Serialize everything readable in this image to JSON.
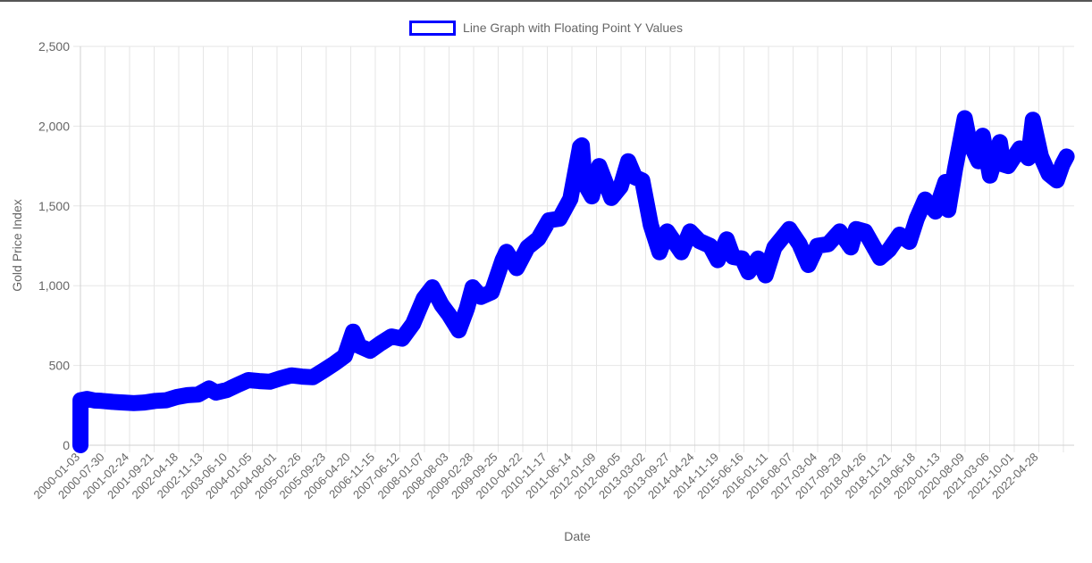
{
  "chart_data": {
    "type": "line",
    "title": "",
    "xlabel": "Date",
    "ylabel": "Gold Price Index",
    "ylim": [
      0,
      2500
    ],
    "yticks": [
      "0",
      "500",
      "1,000",
      "1,500",
      "2,000",
      "2,500"
    ],
    "grid": true,
    "legend_position": "top-center",
    "series": [
      {
        "name": "Line Graph with Floating Point Y Values",
        "color": "#0000ff",
        "x": [
          "2000-01-03",
          "2000-01-04",
          "2000-03-01",
          "2000-05-01",
          "2000-07-01",
          "2000-10-01",
          "2001-01-01",
          "2001-04-01",
          "2001-07-01",
          "2001-10-01",
          "2002-01-01",
          "2002-04-01",
          "2002-07-01",
          "2002-10-01",
          "2003-01-01",
          "2003-03-01",
          "2003-06-01",
          "2003-09-01",
          "2003-12-01",
          "2004-03-01",
          "2004-06-01",
          "2004-09-01",
          "2004-12-01",
          "2005-03-01",
          "2005-06-01",
          "2005-09-01",
          "2005-12-01",
          "2006-03-01",
          "2006-05-10",
          "2006-07-01",
          "2006-10-01",
          "2007-01-01",
          "2007-04-01",
          "2007-07-01",
          "2007-10-01",
          "2008-01-01",
          "2008-03-15",
          "2008-06-01",
          "2008-08-01",
          "2008-10-25",
          "2009-01-01",
          "2009-02-20",
          "2009-05-01",
          "2009-08-01",
          "2009-11-01",
          "2009-12-05",
          "2010-03-01",
          "2010-06-01",
          "2010-09-01",
          "2010-12-01",
          "2011-03-01",
          "2011-06-01",
          "2011-08-22",
          "2011-09-06",
          "2011-10-01",
          "2011-12-01",
          "2012-02-01",
          "2012-05-15",
          "2012-08-01",
          "2012-10-05",
          "2012-12-01",
          "2013-02-01",
          "2013-04-15",
          "2013-06-28",
          "2013-09-01",
          "2013-12-31",
          "2014-03-15",
          "2014-06-01",
          "2014-09-01",
          "2014-11-05",
          "2015-01-20",
          "2015-03-15",
          "2015-06-01",
          "2015-07-24",
          "2015-10-15",
          "2015-12-17",
          "2016-03-01",
          "2016-07-06",
          "2016-10-01",
          "2016-12-15",
          "2017-03-01",
          "2017-06-01",
          "2017-09-08",
          "2017-12-12",
          "2018-01-25",
          "2018-04-11",
          "2018-08-16",
          "2018-11-01",
          "2019-01-30",
          "2019-04-23",
          "2019-06-25",
          "2019-09-04",
          "2019-12-01",
          "2020-02-24",
          "2020-03-19",
          "2020-05-15",
          "2020-08-06",
          "2020-09-15",
          "2020-11-30",
          "2021-01-06",
          "2021-03-08",
          "2021-06-01",
          "2021-06-29",
          "2021-08-10",
          "2021-11-16",
          "2022-01-28",
          "2022-03-08",
          "2022-05-16",
          "2022-07-21",
          "2022-09-28",
          "2022-11-15",
          "2022-12-20"
        ],
        "y": [
          0,
          282,
          290,
          280,
          278,
          272,
          268,
          264,
          268,
          278,
          282,
          302,
          314,
          318,
          356,
          330,
          346,
          378,
          408,
          402,
          398,
          420,
          438,
          430,
          426,
          468,
          512,
          560,
          712,
          622,
          592,
          640,
          682,
          668,
          760,
          920,
          990,
          880,
          820,
          720,
          855,
          990,
          930,
          960,
          1160,
          1212,
          1110,
          1240,
          1295,
          1410,
          1420,
          1545,
          1870,
          1880,
          1640,
          1560,
          1750,
          1550,
          1620,
          1780,
          1680,
          1660,
          1380,
          1210,
          1340,
          1210,
          1340,
          1280,
          1250,
          1160,
          1290,
          1180,
          1170,
          1085,
          1170,
          1065,
          1240,
          1355,
          1260,
          1130,
          1250,
          1260,
          1340,
          1240,
          1355,
          1340,
          1175,
          1225,
          1320,
          1275,
          1420,
          1540,
          1465,
          1650,
          1475,
          1730,
          2050,
          1900,
          1780,
          1940,
          1690,
          1900,
          1760,
          1750,
          1860,
          1800,
          2040,
          1810,
          1700,
          1660,
          1760,
          1810
        ]
      }
    ],
    "x_ticks": [
      "2000-01-03",
      "2000-07-30",
      "2001-02-24",
      "2001-09-21",
      "2002-04-18",
      "2002-11-13",
      "2003-06-10",
      "2004-01-05",
      "2004-08-01",
      "2005-02-26",
      "2005-09-23",
      "2006-04-20",
      "2006-11-15",
      "2007-06-12",
      "2008-01-07",
      "2008-08-03",
      "2009-02-28",
      "2009-09-25",
      "2010-04-22",
      "2010-11-17",
      "2011-06-14",
      "2012-01-09",
      "2012-08-05",
      "2013-03-02",
      "2013-09-27",
      "2014-04-24",
      "2014-11-19",
      "2015-06-16",
      "2016-01-11",
      "2016-08-07",
      "2017-03-04",
      "2017-09-29",
      "2018-04-26",
      "2018-11-21",
      "2019-06-18",
      "2020-01-13",
      "2020-08-09",
      "2021-03-06",
      "2021-10-01",
      "2022-04-28"
    ]
  }
}
